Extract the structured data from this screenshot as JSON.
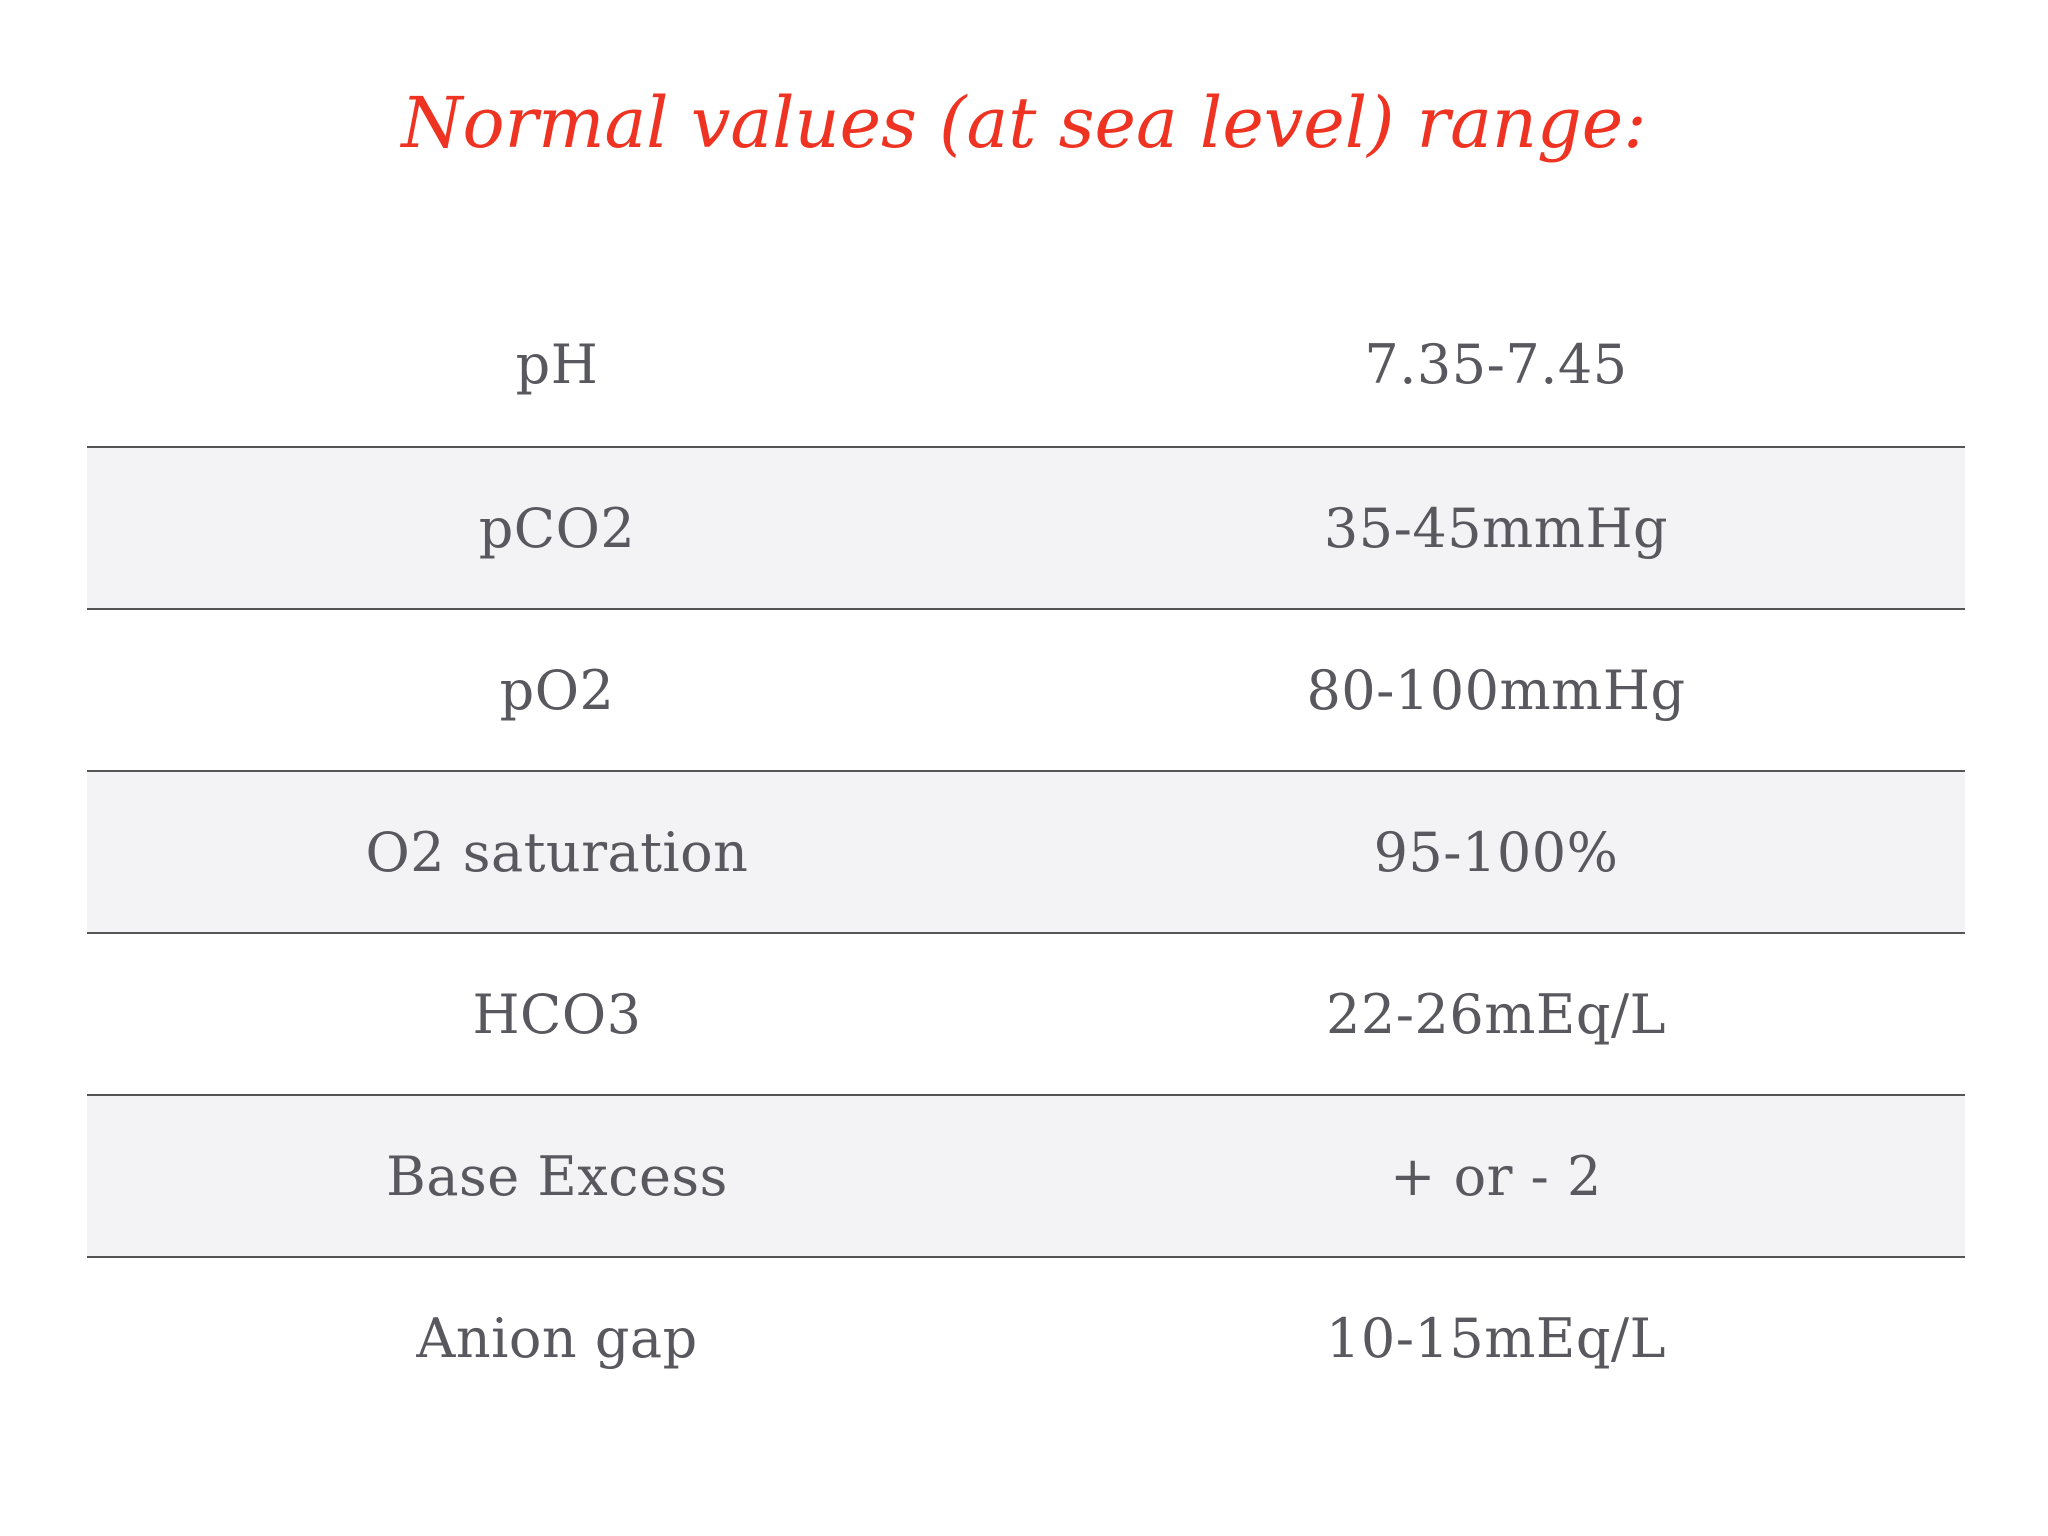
{
  "title": "Normal values (at sea level) range:",
  "colors": {
    "title": "#ee3322",
    "text": "#58585e",
    "shaded_row": "#f3f2f4",
    "divider": "#555555"
  },
  "rows": [
    {
      "parameter": "pH",
      "value": "7.35-7.45"
    },
    {
      "parameter": "pCO2",
      "value": "35-45mmHg"
    },
    {
      "parameter": "pO2",
      "value": "80-100mmHg"
    },
    {
      "parameter": "O2 saturation",
      "value": "95-100%"
    },
    {
      "parameter": "HCO3",
      "value": "22-26mEq/L"
    },
    {
      "parameter": "Base Excess",
      "value": "+ or - 2"
    },
    {
      "parameter": "Anion gap",
      "value": "10-15mEq/L"
    }
  ]
}
